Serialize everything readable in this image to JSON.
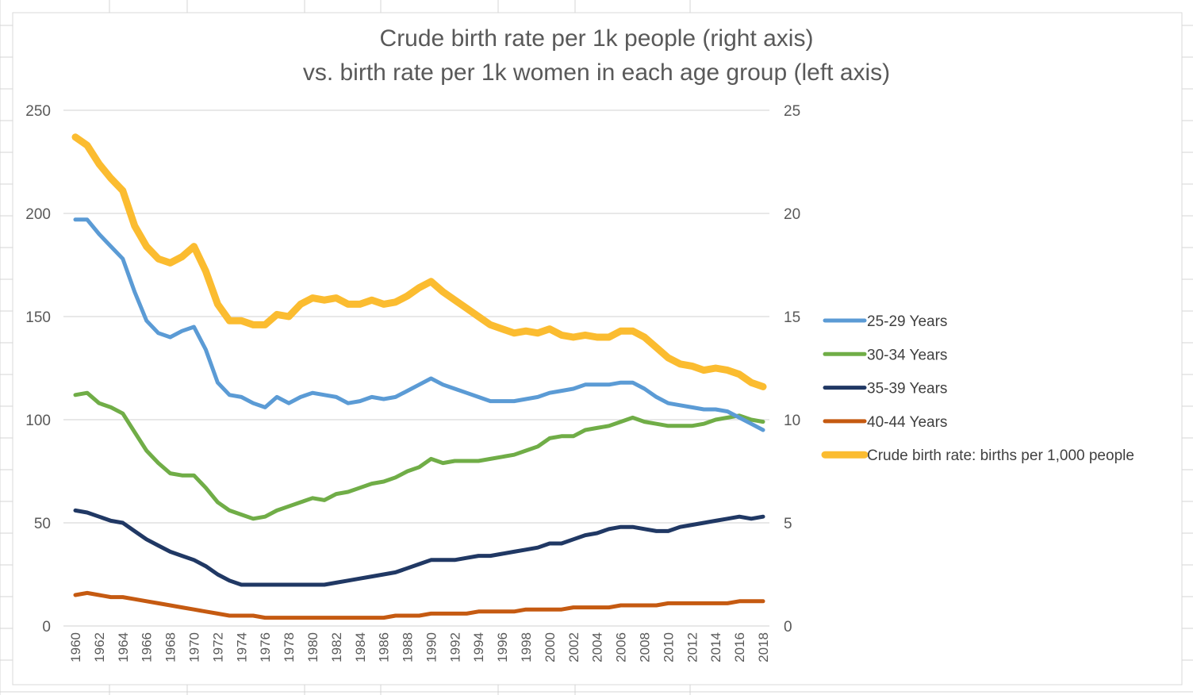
{
  "chart_data": {
    "type": "line",
    "title": "Crude birth rate per 1k people (right axis)",
    "subtitle": "vs. birth rate per 1k women in each age group (left axis)",
    "x": [
      1960,
      1961,
      1962,
      1963,
      1964,
      1965,
      1966,
      1967,
      1968,
      1969,
      1970,
      1971,
      1972,
      1973,
      1974,
      1975,
      1976,
      1977,
      1978,
      1979,
      1980,
      1981,
      1982,
      1983,
      1984,
      1985,
      1986,
      1987,
      1988,
      1989,
      1990,
      1991,
      1992,
      1993,
      1994,
      1995,
      1996,
      1997,
      1998,
      1999,
      2000,
      2001,
      2002,
      2003,
      2004,
      2005,
      2006,
      2007,
      2008,
      2009,
      2010,
      2011,
      2012,
      2013,
      2014,
      2015,
      2016,
      2017,
      2018
    ],
    "x_tick_labels": [
      "1960",
      "1962",
      "1964",
      "1966",
      "1968",
      "1970",
      "1972",
      "1974",
      "1976",
      "1978",
      "1980",
      "1982",
      "1984",
      "1986",
      "1988",
      "1990",
      "1992",
      "1994",
      "1996",
      "1998",
      "2000",
      "2002",
      "2004",
      "2006",
      "2008",
      "2010",
      "2012",
      "2014",
      "2016",
      "2018"
    ],
    "y_left": {
      "min": 0,
      "max": 250,
      "ticks": [
        "0",
        "50",
        "100",
        "150",
        "200",
        "250"
      ]
    },
    "y_right": {
      "min": 0,
      "max": 25,
      "ticks": [
        "0",
        "5",
        "10",
        "15",
        "20",
        "25"
      ]
    },
    "grid": true,
    "legend_position": "right",
    "series": [
      {
        "name": "25-29 Years",
        "axis": "left",
        "color": "#5b9bd5",
        "values": [
          197,
          197,
          190,
          184,
          178,
          162,
          148,
          142,
          140,
          143,
          145,
          134,
          118,
          112,
          111,
          108,
          106,
          111,
          108,
          111,
          113,
          112,
          111,
          108,
          109,
          111,
          110,
          111,
          114,
          117,
          120,
          117,
          115,
          113,
          111,
          109,
          109,
          109,
          110,
          111,
          113,
          114,
          115,
          117,
          117,
          117,
          118,
          118,
          115,
          111,
          108,
          107,
          106,
          105,
          105,
          104,
          101,
          98,
          95
        ]
      },
      {
        "name": "30-34 Years",
        "axis": "left",
        "color": "#70ad47",
        "values": [
          112,
          113,
          108,
          106,
          103,
          94,
          85,
          79,
          74,
          73,
          73,
          67,
          60,
          56,
          54,
          52,
          53,
          56,
          58,
          60,
          62,
          61,
          64,
          65,
          67,
          69,
          70,
          72,
          75,
          77,
          81,
          79,
          80,
          80,
          80,
          81,
          82,
          83,
          85,
          87,
          91,
          92,
          92,
          95,
          96,
          97,
          99,
          101,
          99,
          98,
          97,
          97,
          97,
          98,
          100,
          101,
          102,
          100,
          99
        ]
      },
      {
        "name": "35-39 Years",
        "axis": "left",
        "color": "#203864",
        "values": [
          56,
          55,
          53,
          51,
          50,
          46,
          42,
          39,
          36,
          34,
          32,
          29,
          25,
          22,
          20,
          20,
          20,
          20,
          20,
          20,
          20,
          20,
          21,
          22,
          23,
          24,
          25,
          26,
          28,
          30,
          32,
          32,
          32,
          33,
          34,
          34,
          35,
          36,
          37,
          38,
          40,
          40,
          42,
          44,
          45,
          47,
          48,
          48,
          47,
          46,
          46,
          48,
          49,
          50,
          51,
          52,
          53,
          52,
          53
        ]
      },
      {
        "name": "40-44 Years",
        "axis": "left",
        "color": "#c55a11",
        "values": [
          15,
          16,
          15,
          14,
          14,
          13,
          12,
          11,
          10,
          9,
          8,
          7,
          6,
          5,
          5,
          5,
          4,
          4,
          4,
          4,
          4,
          4,
          4,
          4,
          4,
          4,
          4,
          5,
          5,
          5,
          6,
          6,
          6,
          6,
          7,
          7,
          7,
          7,
          8,
          8,
          8,
          8,
          9,
          9,
          9,
          9,
          10,
          10,
          10,
          10,
          11,
          11,
          11,
          11,
          11,
          11,
          12,
          12,
          12
        ]
      },
      {
        "name": "Crude birth rate: births per 1,000 people",
        "axis": "right",
        "color": "#fbbc30",
        "values": [
          23.7,
          23.3,
          22.4,
          21.7,
          21.1,
          19.4,
          18.4,
          17.8,
          17.6,
          17.9,
          18.4,
          17.2,
          15.6,
          14.8,
          14.8,
          14.6,
          14.6,
          15.1,
          15.0,
          15.6,
          15.9,
          15.8,
          15.9,
          15.6,
          15.6,
          15.8,
          15.6,
          15.7,
          16.0,
          16.4,
          16.7,
          16.2,
          15.8,
          15.4,
          15.0,
          14.6,
          14.4,
          14.2,
          14.3,
          14.2,
          14.4,
          14.1,
          14.0,
          14.1,
          14.0,
          14.0,
          14.3,
          14.3,
          14.0,
          13.5,
          13.0,
          12.7,
          12.6,
          12.4,
          12.5,
          12.4,
          12.2,
          11.8,
          11.6
        ]
      }
    ]
  }
}
